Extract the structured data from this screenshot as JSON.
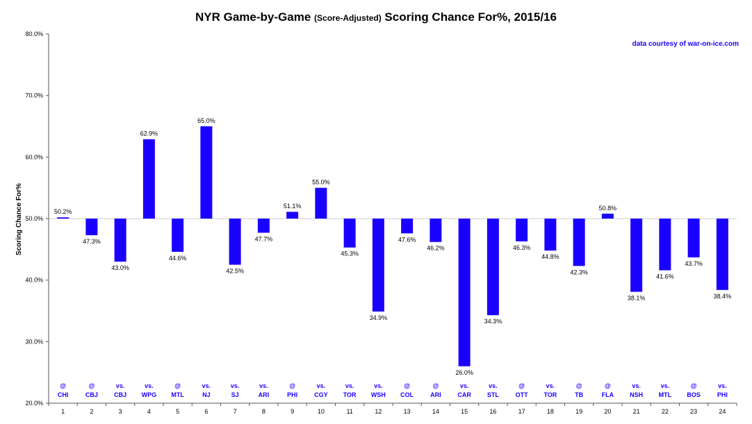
{
  "chart_data": {
    "type": "bar",
    "title_parts": [
      "NYR Game-by-Game ",
      "(Score-Adjusted)",
      " Scoring Chance For%, 2015/16"
    ],
    "ylabel": "Scoring Chance For%",
    "xlabel": "",
    "credit": "data courtesy of war-on-ice.com",
    "ylim": [
      20,
      80
    ],
    "baseline": 50,
    "y_ticks": [
      20,
      30,
      40,
      50,
      60,
      70,
      80
    ],
    "y_tick_labels": [
      "20.0%",
      "30.0%",
      "40.0%",
      "50.0%",
      "60.0%",
      "70.0%",
      "80.0%"
    ],
    "bar_color": "#1a00ff",
    "grid": false,
    "categories": [
      "1",
      "2",
      "3",
      "4",
      "5",
      "6",
      "7",
      "8",
      "9",
      "10",
      "11",
      "12",
      "13",
      "14",
      "15",
      "16",
      "17",
      "18",
      "19",
      "20",
      "21",
      "22",
      "23",
      "24"
    ],
    "opponent_prefix": [
      "@",
      "@",
      "vs.",
      "vs.",
      "@",
      "vs.",
      "vs.",
      "vs.",
      "@",
      "vs.",
      "vs.",
      "vs.",
      "@",
      "@",
      "vs.",
      "vs.",
      "@",
      "vs.",
      "@",
      "@",
      "vs.",
      "vs.",
      "@",
      "vs."
    ],
    "opponent_team": [
      "CHI",
      "CBJ",
      "CBJ",
      "WPG",
      "MTL",
      "NJ",
      "SJ",
      "ARI",
      "PHI",
      "CGY",
      "TOR",
      "WSH",
      "COL",
      "ARI",
      "CAR",
      "STL",
      "OTT",
      "TOR",
      "TB",
      "FLA",
      "NSH",
      "MTL",
      "BOS",
      "PHI"
    ],
    "values": [
      50.2,
      47.3,
      43.0,
      62.9,
      44.6,
      65.0,
      42.5,
      47.7,
      51.1,
      55.0,
      45.3,
      34.9,
      47.6,
      46.2,
      26.0,
      34.3,
      46.3,
      44.8,
      42.3,
      50.8,
      38.1,
      41.6,
      43.7,
      38.4
    ],
    "value_labels": [
      "50.2%",
      "47.3%",
      "43.0%",
      "62.9%",
      "44.6%",
      "65.0%",
      "42.5%",
      "47.7%",
      "51.1%",
      "55.0%",
      "45.3%",
      "34.9%",
      "47.6%",
      "46.2%",
      "26.0%",
      "34.3%",
      "46.3%",
      "44.8%",
      "42.3%",
      "50.8%",
      "38.1%",
      "41.6%",
      "43.7%",
      "38.4%"
    ]
  }
}
